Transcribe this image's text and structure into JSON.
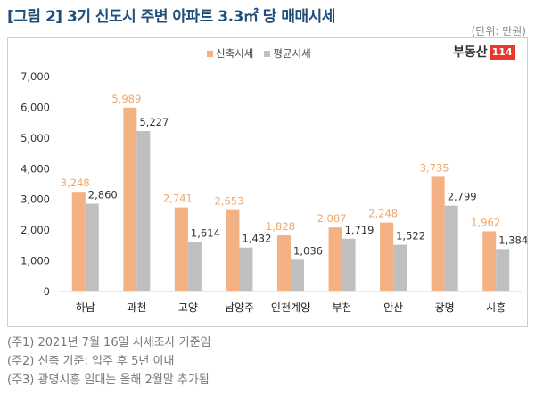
{
  "chart_data": {
    "type": "bar",
    "title": "[그림 2] 3기 신도시 주변 아파트 3.3㎡ 당 매매시세",
    "unit": "(단위: 만원)",
    "categories": [
      "하남",
      "과천",
      "고양",
      "남양주",
      "인천계양",
      "부천",
      "안산",
      "광명",
      "시흥"
    ],
    "series": [
      {
        "name": "신축시세",
        "color": "#F4B183",
        "label_color": "#F0A868",
        "values": [
          3248,
          5989,
          2741,
          2653,
          1828,
          2087,
          2248,
          3735,
          1962
        ]
      },
      {
        "name": "평균시세",
        "color": "#BFBFBF",
        "label_color": "#333333",
        "values": [
          2860,
          5227,
          1614,
          1432,
          1036,
          1719,
          1522,
          2799,
          1384
        ]
      }
    ],
    "ylim": [
      0,
      7000
    ],
    "yticks": [
      "0",
      "1,000",
      "2,000",
      "3,000",
      "4,000",
      "5,000",
      "6,000",
      "7,000"
    ],
    "grid": false,
    "legend": "top-center"
  },
  "logo": {
    "text": "부동산",
    "number": "114"
  },
  "notes": [
    "(주1) 2021년 7월 16일 시세조사 기준임",
    "(주2) 신축 기준: 입주 후 5년 이내",
    "(주3) 광명시흥 일대는 올해 2월말 추가됨"
  ]
}
